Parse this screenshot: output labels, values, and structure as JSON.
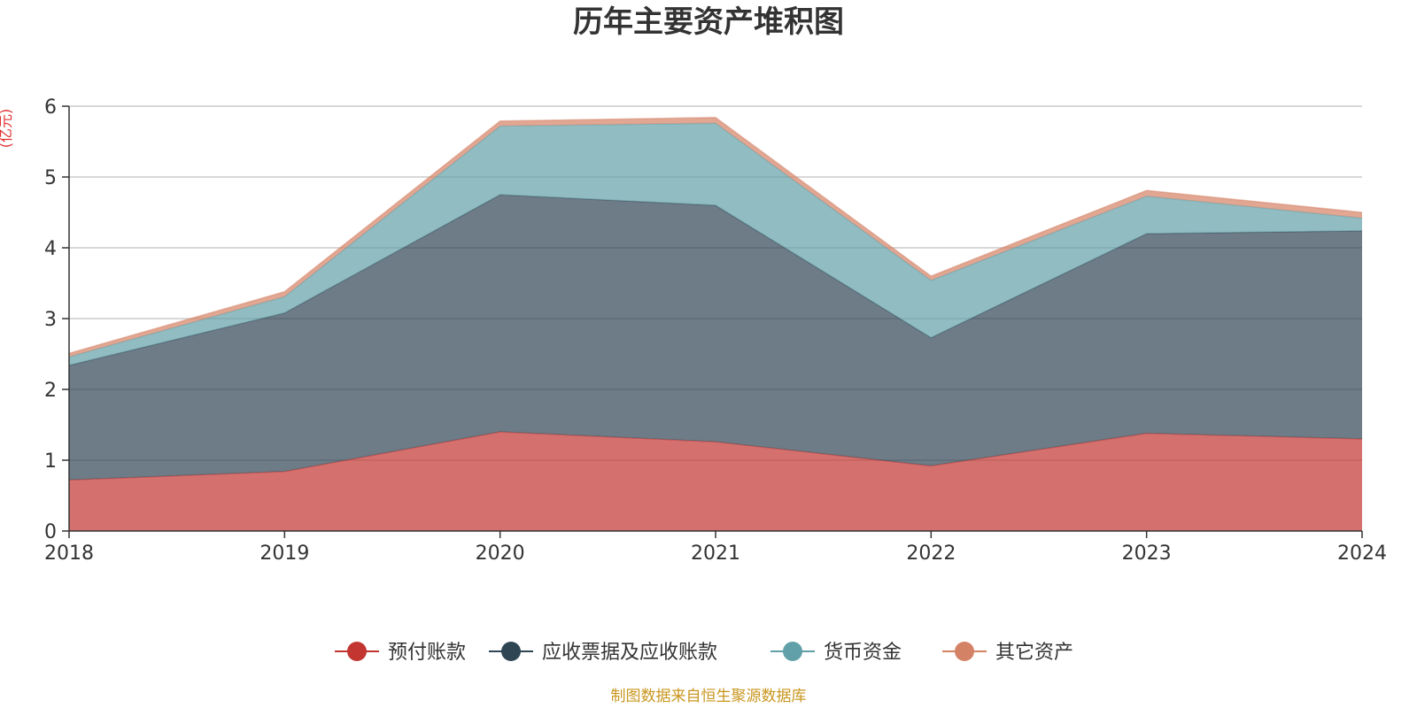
{
  "chart_data": {
    "type": "area",
    "stacked": true,
    "title": "历年主要资产堆积图",
    "unit_label": "(亿元)",
    "categories": [
      "2018",
      "2019",
      "2020",
      "2021",
      "2022",
      "2023",
      "2024"
    ],
    "ylim": [
      0,
      6
    ],
    "yticks": [
      "0",
      "1",
      "2",
      "3",
      "4",
      "5",
      "6"
    ],
    "grid": true,
    "legend_position": "bottom-center",
    "series": [
      {
        "name": "预付账款",
        "color": "#c23531",
        "values": [
          0.72,
          0.84,
          1.4,
          1.26,
          0.92,
          1.38,
          1.3
        ]
      },
      {
        "name": "应收票据及应收账款",
        "color": "#2f4554",
        "values": [
          1.62,
          2.24,
          3.35,
          3.34,
          1.81,
          2.82,
          2.94
        ]
      },
      {
        "name": "货币资金",
        "color": "#61a0a8",
        "values": [
          0.12,
          0.23,
          0.97,
          1.16,
          0.81,
          0.53,
          0.18
        ]
      },
      {
        "name": "其它资产",
        "color": "#d48265",
        "values": [
          0.05,
          0.07,
          0.07,
          0.08,
          0.06,
          0.08,
          0.08
        ]
      }
    ],
    "source_note": "制图数据来自恒生聚源数据库"
  }
}
